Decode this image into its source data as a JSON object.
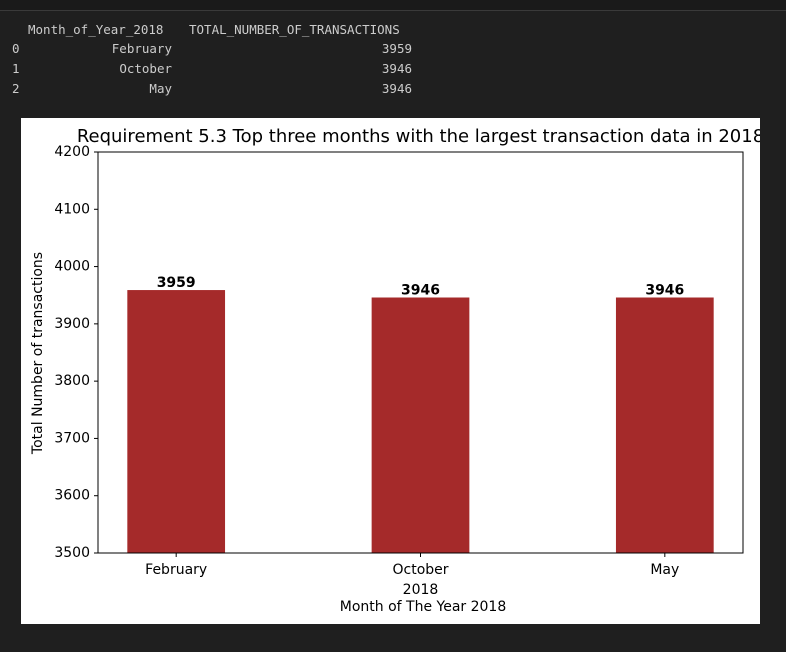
{
  "table": {
    "columns": [
      "Month_of_Year_2018",
      "TOTAL_NUMBER_OF_TRANSACTIONS"
    ],
    "index": [
      "0",
      "1",
      "2"
    ],
    "rows": [
      [
        "February",
        "3959"
      ],
      [
        "October",
        "3946"
      ],
      [
        "May",
        "3946"
      ]
    ]
  },
  "chart_data": {
    "type": "bar",
    "title": "Requirement 5.3 Top three months with the largest transaction data in 2018",
    "categories": [
      "February",
      "October",
      "May"
    ],
    "values": [
      3959,
      3946,
      3946
    ],
    "color": "#a52a2a",
    "ylabel": "Total Number of transactions",
    "xlabel": [
      "2018",
      "Month of The Year 2018"
    ],
    "ylim": [
      3500,
      4200
    ],
    "yticks": [
      3500,
      3600,
      3700,
      3800,
      3900,
      4000,
      4100,
      4200
    ]
  }
}
